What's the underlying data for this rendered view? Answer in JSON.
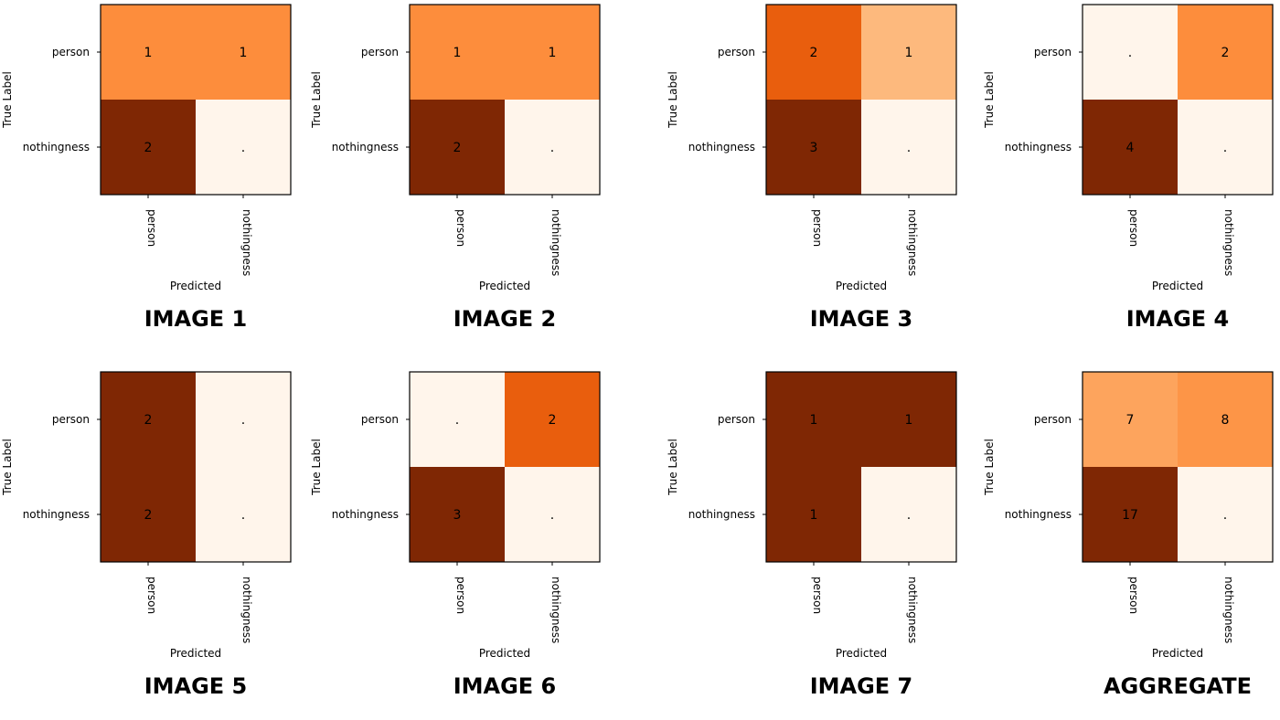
{
  "chart_data": [
    {
      "type": "heatmap",
      "title": "IMAGE 1",
      "xlabel": "Predicted",
      "ylabel": "True Label",
      "x_categories": [
        "person",
        "nothingness"
      ],
      "y_categories": [
        "person",
        "nothingness"
      ],
      "values": [
        [
          1,
          1
        ],
        [
          2,
          0
        ]
      ],
      "labels": [
        [
          "1",
          "1"
        ],
        [
          "2",
          "."
        ]
      ]
    },
    {
      "type": "heatmap",
      "title": "IMAGE 2",
      "xlabel": "Predicted",
      "ylabel": "True Label",
      "x_categories": [
        "person",
        "nothingness"
      ],
      "y_categories": [
        "person",
        "nothingness"
      ],
      "values": [
        [
          1,
          1
        ],
        [
          2,
          0
        ]
      ],
      "labels": [
        [
          "1",
          "1"
        ],
        [
          "2",
          "."
        ]
      ]
    },
    {
      "type": "heatmap",
      "title": "IMAGE 3",
      "xlabel": "Predicted",
      "ylabel": "True Label",
      "x_categories": [
        "person",
        "nothingness"
      ],
      "y_categories": [
        "person",
        "nothingness"
      ],
      "values": [
        [
          2,
          1
        ],
        [
          3,
          0
        ]
      ],
      "labels": [
        [
          "2",
          "1"
        ],
        [
          "3",
          "."
        ]
      ]
    },
    {
      "type": "heatmap",
      "title": "IMAGE 4",
      "xlabel": "Predicted",
      "ylabel": "True Label",
      "x_categories": [
        "person",
        "nothingness"
      ],
      "y_categories": [
        "person",
        "nothingness"
      ],
      "values": [
        [
          0,
          2
        ],
        [
          4,
          0
        ]
      ],
      "labels": [
        [
          ".",
          "2"
        ],
        [
          "4",
          "."
        ]
      ]
    },
    {
      "type": "heatmap",
      "title": "IMAGE 5",
      "xlabel": "Predicted",
      "ylabel": "True Label",
      "x_categories": [
        "person",
        "nothingness"
      ],
      "y_categories": [
        "person",
        "nothingness"
      ],
      "values": [
        [
          2,
          0
        ],
        [
          2,
          0
        ]
      ],
      "labels": [
        [
          "2",
          "."
        ],
        [
          "2",
          "."
        ]
      ]
    },
    {
      "type": "heatmap",
      "title": "IMAGE 6",
      "xlabel": "Predicted",
      "ylabel": "True Label",
      "x_categories": [
        "person",
        "nothingness"
      ],
      "y_categories": [
        "person",
        "nothingness"
      ],
      "values": [
        [
          0,
          2
        ],
        [
          3,
          0
        ]
      ],
      "labels": [
        [
          ".",
          "2"
        ],
        [
          "3",
          "."
        ]
      ]
    },
    {
      "type": "heatmap",
      "title": "IMAGE 7",
      "xlabel": "Predicted",
      "ylabel": "True Label",
      "x_categories": [
        "person",
        "nothingness"
      ],
      "y_categories": [
        "person",
        "nothingness"
      ],
      "values": [
        [
          1,
          1
        ],
        [
          1,
          0
        ]
      ],
      "labels": [
        [
          "1",
          "1"
        ],
        [
          "1",
          "."
        ]
      ]
    },
    {
      "type": "heatmap",
      "title": "AGGREGATE",
      "xlabel": "Predicted",
      "ylabel": "True Label",
      "x_categories": [
        "person",
        "nothingness"
      ],
      "y_categories": [
        "person",
        "nothingness"
      ],
      "values": [
        [
          7,
          8
        ],
        [
          17,
          0
        ]
      ],
      "labels": [
        [
          "7",
          "8"
        ],
        [
          "17",
          "."
        ]
      ]
    }
  ],
  "colormap": [
    "#fff5eb",
    "#fee6ce",
    "#fdd0a2",
    "#fdae6b",
    "#fd8d3c",
    "#f16913",
    "#d94801",
    "#a63603",
    "#7f2704"
  ]
}
